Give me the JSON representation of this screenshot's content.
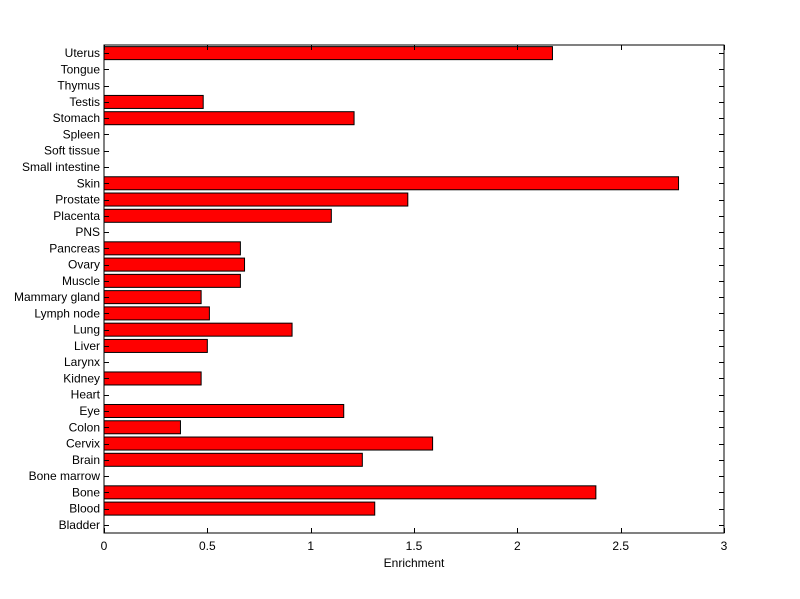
{
  "chart_data": {
    "type": "bar",
    "orientation": "horizontal",
    "title": "",
    "xlabel": "Enrichment",
    "ylabel": "",
    "xlim": [
      0,
      3
    ],
    "xticks": [
      0,
      0.5,
      1,
      1.5,
      2,
      2.5,
      3
    ],
    "xtick_labels": [
      "0",
      "0.5",
      "1",
      "1.5",
      "2",
      "2.5",
      "3"
    ],
    "grid": false,
    "bar_color": "#ff0000",
    "categories": [
      "Bladder",
      "Blood",
      "Bone",
      "Bone marrow",
      "Brain",
      "Cervix",
      "Colon",
      "Eye",
      "Heart",
      "Kidney",
      "Larynx",
      "Liver",
      "Lung",
      "Lymph node",
      "Mammary gland",
      "Muscle",
      "Ovary",
      "Pancreas",
      "PNS",
      "Placenta",
      "Prostate",
      "Skin",
      "Small intestine",
      "Soft tissue",
      "Spleen",
      "Stomach",
      "Testis",
      "Thymus",
      "Tongue",
      "Uterus"
    ],
    "values": [
      0,
      1.31,
      2.38,
      0,
      1.25,
      1.59,
      0.37,
      1.16,
      0,
      0.47,
      0,
      0.5,
      0.91,
      0.51,
      0.47,
      0.66,
      0.68,
      0.66,
      0,
      1.1,
      1.47,
      2.78,
      0,
      0,
      0,
      1.21,
      0.48,
      0,
      0,
      2.17
    ]
  }
}
